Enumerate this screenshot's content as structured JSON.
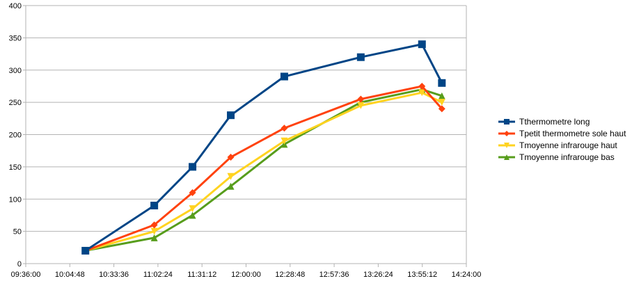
{
  "chart_data": {
    "type": "line",
    "title": "",
    "xlabel": "",
    "ylabel": "",
    "ylim": [
      0,
      400
    ],
    "yticks": [
      0,
      50,
      100,
      150,
      200,
      250,
      300,
      350,
      400
    ],
    "xlim": [
      "09:36:00",
      "14:24:00"
    ],
    "xticks": [
      "09:36:00",
      "10:04:48",
      "10:33:36",
      "11:02:24",
      "11:31:12",
      "12:00:00",
      "12:28:48",
      "12:57:36",
      "13:26:24",
      "13:55:12",
      "14:24:00"
    ],
    "grid": "horizontal",
    "legend_placement": "right",
    "x": [
      "10:15",
      "11:00",
      "11:25",
      "11:50",
      "12:25",
      "13:15",
      "13:55",
      "14:08"
    ],
    "series": [
      {
        "name": "Tthermometre long",
        "color": "#004586",
        "marker": "square",
        "values": [
          20,
          90,
          150,
          230,
          290,
          320,
          340,
          280
        ]
      },
      {
        "name": "Tpetit thermometre sole haut",
        "color": "#ff420e",
        "marker": "diamond",
        "values": [
          20,
          60,
          110,
          165,
          210,
          255,
          275,
          240
        ]
      },
      {
        "name": "Tmoyenne infrarouge haut",
        "color": "#ffd320",
        "marker": "triangle-down",
        "values": [
          20,
          50,
          85,
          135,
          190,
          245,
          265,
          250
        ]
      },
      {
        "name": "Tmoyenne infrarouge bas",
        "color": "#579d1c",
        "marker": "triangle-up",
        "values": [
          20,
          40,
          75,
          120,
          185,
          250,
          270,
          260
        ]
      }
    ]
  }
}
